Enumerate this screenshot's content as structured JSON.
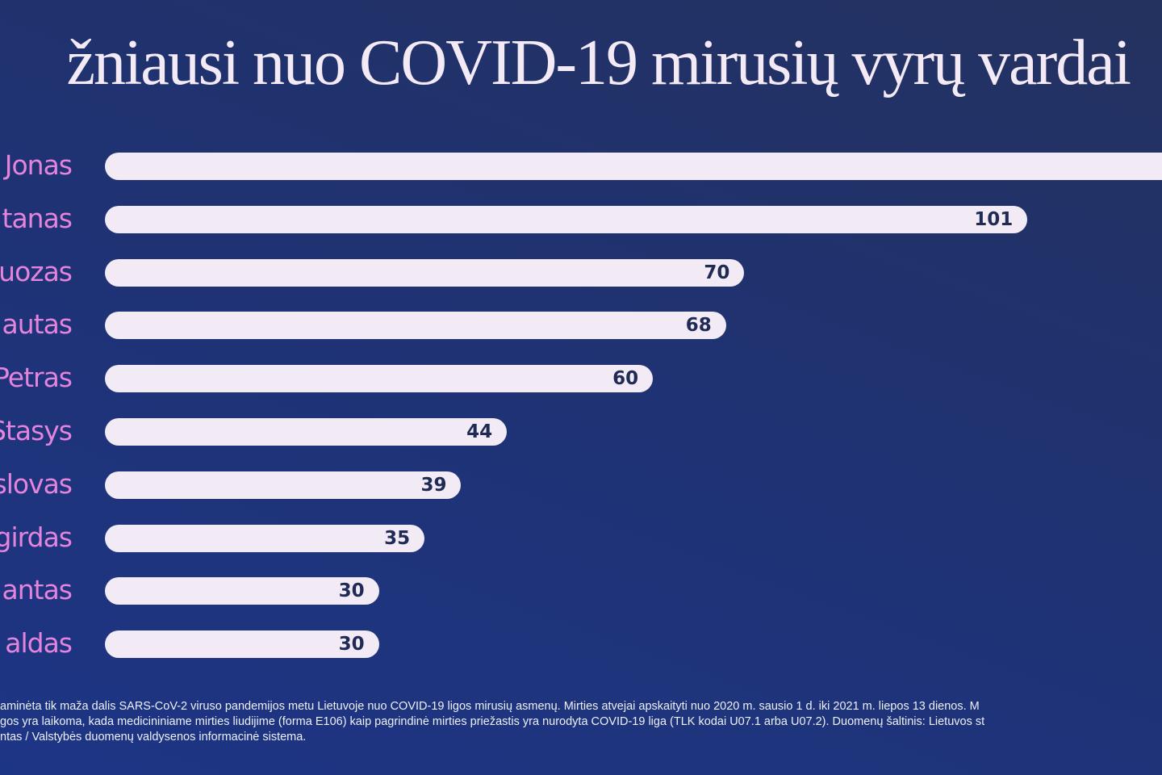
{
  "chart_data": {
    "type": "bar",
    "orientation": "horizontal",
    "title": "žniausi nuo COVID-19 mirusių vyrų vardai",
    "categories": [
      "Jonas",
      "tanas",
      "uozas",
      "autas",
      "Petras",
      "Stasys",
      "slovas",
      "girdas",
      "antas",
      "aldas"
    ],
    "values": [
      null,
      101,
      70,
      68,
      60,
      44,
      39,
      35,
      30,
      30
    ],
    "value_labels": [
      "",
      "101",
      "70",
      "68",
      "60",
      "44",
      "39",
      "35",
      "30",
      "30"
    ],
    "grid": false,
    "colors": {
      "background": "#1f3272",
      "bar": "#f2eaf4",
      "label": "#e484dc",
      "value": "#1f2a55",
      "title": "#f3eaf5"
    }
  },
  "footnote": [
    "aminėta tik maža dalis SARS-CoV-2 viruso pandemijos metu Lietuvoje nuo COVID-19 ligos mirusių asmenų. Mirties atvejai apskaityti nuo 2020 m. sausio 1 d. iki 2021 m. liepos 13 dienos. M",
    "gos yra laikoma, kada medicininiame mirties liudijime (forma E106) kaip pagrindinė mirties priežastis yra nurodyta COVID-19 liga (TLK kodai U07.1 arba U07.2). Duomenų šaltinis: Lietuvos st",
    "ntas / Valstybės duomenų valdysenos informacinė sistema."
  ]
}
